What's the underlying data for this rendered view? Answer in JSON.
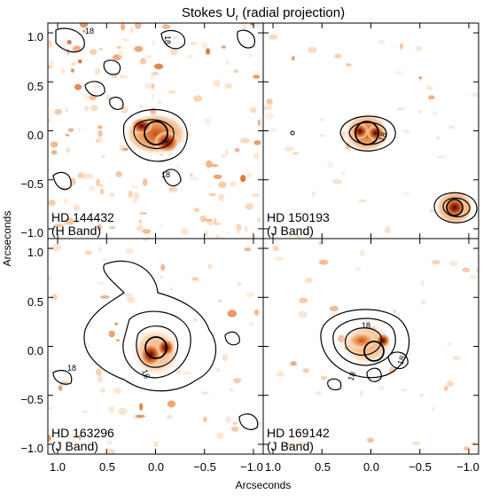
{
  "figure": {
    "title_main": "Stokes U",
    "title_sub": "r",
    "title_suffix": " (radial projection)",
    "x_axis_label": "Arcseconds",
    "y_axis_label": "Arcseconds",
    "x_tick_labels": [
      "1.0",
      "0.5",
      "0.0",
      "−0.5",
      "−1.0"
    ],
    "y_tick_labels": [
      "1.0",
      "0.5",
      "0.0",
      "−0.5",
      "−1.0"
    ],
    "contour_label": "18",
    "colors": {
      "low": "#f6c9a6",
      "mid": "#e58a3f",
      "high": "#b8411d",
      "peak": "#5a0f08"
    }
  },
  "panels": [
    {
      "id": "hd144432",
      "name": "HD 144432",
      "band": "(H Band)"
    },
    {
      "id": "hd150193",
      "name": "HD 150193",
      "band": "(J Band)"
    },
    {
      "id": "hd163296",
      "name": "HD 163296",
      "band": "(J Band)"
    },
    {
      "id": "hd169142",
      "name": "HD 169142",
      "band": "(J Band)"
    }
  ],
  "chart_data": {
    "type": "heatmap",
    "title": "Stokes Ur (radial projection)",
    "xlabel": "Arcseconds",
    "ylabel": "Arcseconds",
    "xlim": [
      1.1,
      -1.1
    ],
    "ylim": [
      -1.1,
      1.1
    ],
    "x_ticks": [
      1.0,
      0.5,
      0.0,
      -0.5,
      -1.0
    ],
    "y_ticks": [
      1.0,
      0.5,
      0.0,
      -0.5,
      -1.0
    ],
    "layout": "2x2",
    "panels": [
      "HD 144432 (H Band)",
      "HD 150193 (J Band)",
      "HD 163296 (J Band)",
      "HD 169142 (J Band)"
    ],
    "sources": [
      {
        "panel": "HD 144432 (H Band)",
        "x": 0.0,
        "y": 0.0
      },
      {
        "panel": "HD 150193 (J Band)",
        "x": 0.0,
        "y": 0.0
      },
      {
        "panel": "HD 150193 (J Band)",
        "x": -0.85,
        "y": -0.75
      },
      {
        "panel": "HD 163296 (J Band)",
        "x": 0.0,
        "y": 0.0
      },
      {
        "panel": "HD 169142 (J Band)",
        "x": 0.0,
        "y": 0.0
      }
    ]
  }
}
